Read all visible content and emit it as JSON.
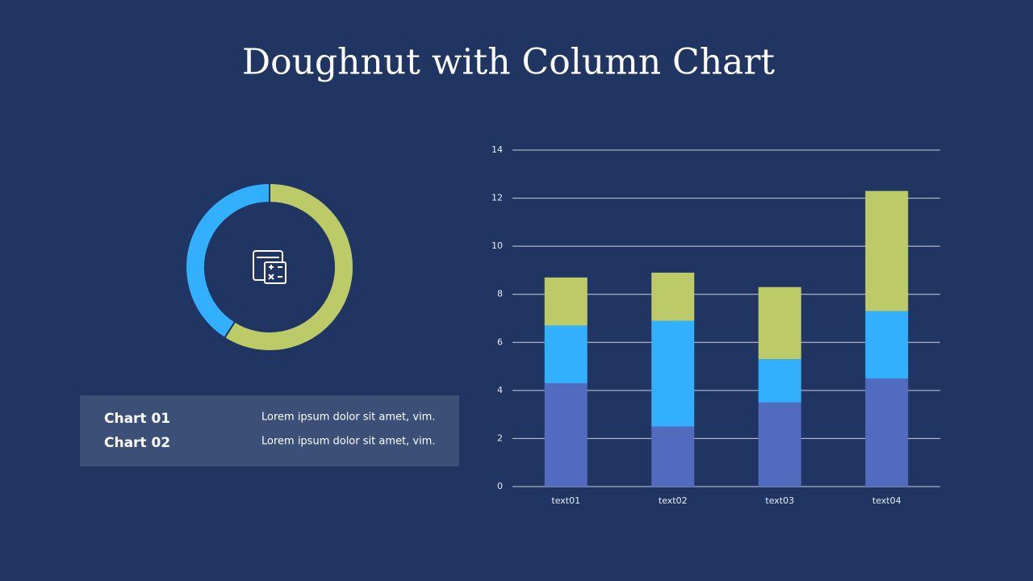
{
  "title": "Doughnut with Column Chart",
  "chart_data": [
    {
      "type": "doughnut",
      "values": [
        59,
        41
      ],
      "colors": [
        "#bccb68",
        "#33b0fd"
      ]
    },
    {
      "type": "stacked-bar",
      "categories": [
        "text01",
        "text02",
        "text03",
        "text04"
      ],
      "series": [
        {
          "color": "#536bbf",
          "values": [
            4.3,
            2.5,
            3.5,
            4.5
          ]
        },
        {
          "color": "#33b0fd",
          "values": [
            2.4,
            4.4,
            1.8,
            2.8
          ]
        },
        {
          "color": "#bccb68",
          "values": [
            2.0,
            2.0,
            3.0,
            5.0
          ]
        }
      ],
      "ylim": [
        0,
        14
      ],
      "yticks": [
        0,
        2,
        4,
        6,
        8,
        10,
        12,
        14
      ],
      "grid": true
    }
  ],
  "info_box": {
    "items": [
      {
        "label": "Chart 01",
        "text": "Lorem ipsum dolor sit amet, vim."
      },
      {
        "label": "Chart 02",
        "text": "Lorem ipsum dolor sit amet, vim."
      }
    ]
  }
}
